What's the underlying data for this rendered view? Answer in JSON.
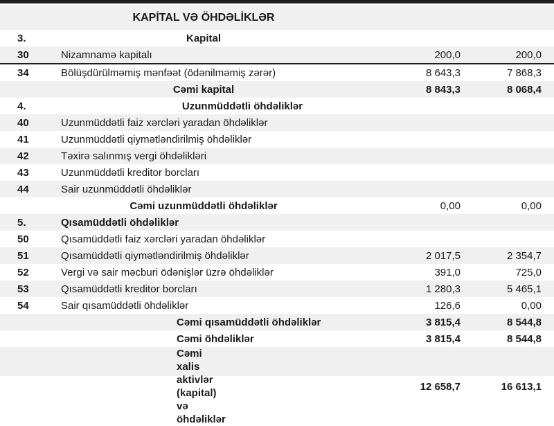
{
  "table": {
    "title": "KAPİTAL VƏ ÖHDƏLİKLƏR",
    "colors": {
      "shaded_row": "#f0f0f0",
      "top_bar": "#1d1d1d",
      "divider_line": "#1d1d1d",
      "text": "#1a1a1a",
      "background": "#ffffff"
    },
    "rows": [
      {
        "code": "3.",
        "label": "Kapital",
        "v1": "",
        "v2": "",
        "align": "center",
        "bold": true,
        "shaded": false
      },
      {
        "code": "30",
        "label": "Nizamnamə kapitalı",
        "v1": "200,0",
        "v2": "200,0",
        "align": "left",
        "bold": false,
        "shaded": true
      },
      {
        "code": "34",
        "label": "Bölüşdürülməmiş mənfəət (ödənilməmiş zərər)",
        "v1": "8 643,3",
        "v2": "7 868,3",
        "align": "left",
        "bold": false,
        "shaded": false,
        "divider_above": true
      },
      {
        "code": "",
        "label": "Cəmi kapital",
        "v1": "8 843,3",
        "v2": "8 068,4",
        "align": "center",
        "bold": true,
        "values_bold": true,
        "shaded": true
      },
      {
        "code": "4.",
        "label": "Uzunmüddətli öhdəliklər",
        "v1": "",
        "v2": "",
        "align": "center_wide",
        "bold": true,
        "shaded": false
      },
      {
        "code": "40",
        "label": "Uzunmüddətli faiz xərcləri yaradan öhdəliklər",
        "v1": "",
        "v2": "",
        "align": "left",
        "bold": false,
        "shaded": true
      },
      {
        "code": "41",
        "label": "Uzunmüddətli qiymətləndirilmiş öhdəliklər",
        "v1": "",
        "v2": "",
        "align": "left",
        "bold": false,
        "shaded": false
      },
      {
        "code": "42",
        "label": "Təxirə salınmış vergi öhdəlikləri",
        "v1": "",
        "v2": "",
        "align": "left",
        "bold": false,
        "shaded": true
      },
      {
        "code": "43",
        "label": "Uzunmüddətli kreditor borcları",
        "v1": "",
        "v2": "",
        "align": "left",
        "bold": false,
        "shaded": false
      },
      {
        "code": "44",
        "label": "Sair uzunmüddətli öhdəliklər",
        "v1": "",
        "v2": "",
        "align": "left",
        "bold": false,
        "shaded": true
      },
      {
        "code": "",
        "label": "Cəmi uzunmüddətli öhdəliklər",
        "v1": "0,00",
        "v2": "0,00",
        "align": "center",
        "bold": true,
        "values_bold": false,
        "shaded": false
      },
      {
        "code": "5.",
        "label": "Qısamüddətli öhdəliklər",
        "v1": "",
        "v2": "",
        "align": "left",
        "bold": true,
        "shaded": true
      },
      {
        "code": "50",
        "label": "Qısamüddətli faiz xərcləri yaradan öhdəliklər",
        "v1": "",
        "v2": "",
        "align": "left",
        "bold": false,
        "shaded": false
      },
      {
        "code": "51",
        "label": "Qısamüddətli qiymətləndirilmiş öhdəliklər",
        "v1": "2 017,5",
        "v2": "2 354,7",
        "align": "left",
        "bold": false,
        "shaded": true
      },
      {
        "code": "52",
        "label": "Vergi və sair məcburi ödənişlər üzrə öhdəliklər",
        "v1": "391,0",
        "v2": "725,0",
        "align": "left",
        "bold": false,
        "shaded": false
      },
      {
        "code": "53",
        "label": "Qısamüddətli kreditor borcları",
        "v1": "1 280,3",
        "v2": "5 465,1",
        "align": "left",
        "bold": false,
        "shaded": true
      },
      {
        "code": "54",
        "label": "Sair qısamüddətli öhdəliklər",
        "v1": "126,6",
        "v2": "0,00",
        "align": "left",
        "bold": false,
        "shaded": false
      },
      {
        "code": "",
        "label": "Cəmi qısamüddətli öhdəliklər",
        "v1": "3 815,4",
        "v2": "8 544,8",
        "align": "indent",
        "bold": true,
        "values_bold": true,
        "shaded": true
      },
      {
        "code": "",
        "label": "Cəmi öhdəliklər",
        "v1": "3 815,4",
        "v2": "8 544,8",
        "align": "indent",
        "bold": true,
        "values_bold": true,
        "shaded": false
      },
      {
        "code": "",
        "label": "Cəmi xalis aktivlər (kapital) və öhdəliklər",
        "v1": "12 658,7",
        "v2": "16 613,1",
        "align": "indent",
        "bold": true,
        "values_bold": true,
        "shaded": true,
        "tall": true
      }
    ]
  }
}
